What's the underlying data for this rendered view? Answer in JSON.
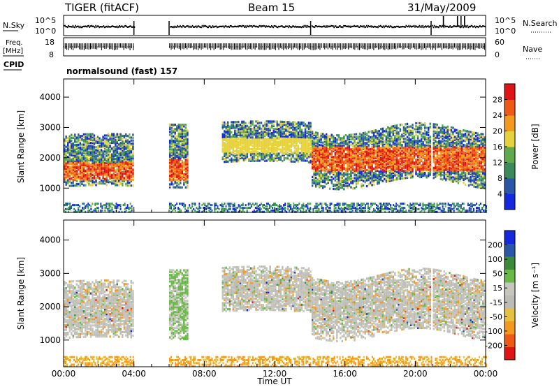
{
  "header": {
    "radar": "TIGER (fitACF)",
    "beam": "Beam 15",
    "date": "31/May/2009"
  },
  "noise_panel": {
    "left_label": "N.Sky",
    "left_ticks": [
      "10^5",
      "10^0"
    ],
    "right_label": "N.Search",
    "right_ticks": [
      "10^5",
      "10^0"
    ]
  },
  "freq_panel": {
    "left_label_1": "Freq.",
    "left_label_2": "[MHz]",
    "left_ticks": [
      "18",
      "8"
    ],
    "right_label": "Nave",
    "right_ticks": [
      "60",
      "0"
    ]
  },
  "cpid": {
    "label": "CPID",
    "text": "normalsound (fast) 157"
  },
  "x_axis": {
    "label": "Time UT",
    "ticks": [
      "00:00",
      "04:00",
      "08:00",
      "12:00",
      "16:00",
      "20:00",
      "00:00"
    ]
  },
  "colors": {
    "power": [
      "#1428e0",
      "#2a56a8",
      "#3a8a5a",
      "#5faa4a",
      "#e6d23c",
      "#f29a1e",
      "#ee5a14",
      "#e01414"
    ],
    "velocity": [
      "#e01414",
      "#ee5a14",
      "#f29a1e",
      "#e6c040",
      "#bcbcb4",
      "#c6c6be",
      "#6ab848",
      "#3a8a3a",
      "#2a56a8",
      "#1428e0"
    ]
  },
  "chart_data": [
    {
      "type": "heatmap",
      "title": "",
      "xlabel": "Time UT",
      "ylabel": "Slant Range [km]",
      "xlim": [
        0,
        24
      ],
      "ylim": [
        200,
        4600
      ],
      "yticks": [
        1000,
        2000,
        3000,
        4000
      ],
      "colorbar": {
        "label": "Power [dB]",
        "ticks": [
          4,
          8,
          12,
          16,
          20,
          24,
          28
        ],
        "range": [
          0,
          32
        ]
      },
      "data_gaps_hours": [
        [
          4.0,
          6.0
        ],
        [
          14.05,
          14.1
        ],
        [
          20.9,
          20.95
        ]
      ],
      "echo_bands": [
        {
          "t0": 0.0,
          "t1": 4.0,
          "r_lo": 1100,
          "r_hi": 2800,
          "peak_dB": 30,
          "core": [
            1300,
            1900
          ]
        },
        {
          "t0": 6.0,
          "t1": 7.0,
          "r_lo": 1100,
          "r_hi": 3200,
          "peak_dB": 26,
          "core": [
            1300,
            2000
          ]
        },
        {
          "t0": 9.0,
          "t1": 14.0,
          "r_lo": 1900,
          "r_hi": 3200,
          "peak_dB": 18,
          "core": [
            2200,
            2700
          ]
        },
        {
          "t0": 14.1,
          "t1": 24.0,
          "r_lo": 1200,
          "r_hi": 3000,
          "peak_dB": 26,
          "core": [
            1600,
            2400
          ]
        }
      ],
      "ground_scatter_range_km": [
        250,
        550
      ]
    },
    {
      "type": "heatmap",
      "title": "",
      "xlabel": "Time UT",
      "ylabel": "Slant Range [km]",
      "xlim": [
        0,
        24
      ],
      "ylim": [
        200,
        4600
      ],
      "yticks": [
        1000,
        2000,
        3000,
        4000
      ],
      "colorbar": {
        "label": "Velocity [m s^-1]",
        "ticks": [
          200,
          100,
          50,
          15,
          -15,
          -50,
          -100,
          -200
        ],
        "range": [
          -250,
          250
        ]
      },
      "echo_bands": [
        {
          "t0": 0.0,
          "t1": 4.0,
          "r_lo": 1100,
          "r_hi": 2800,
          "typical_vel": 0
        },
        {
          "t0": 6.0,
          "t1": 7.0,
          "r_lo": 1100,
          "r_hi": 3200,
          "typical_vel": 60
        },
        {
          "t0": 9.0,
          "t1": 14.0,
          "r_lo": 1900,
          "r_hi": 3200,
          "typical_vel": 0
        },
        {
          "t0": 14.1,
          "t1": 24.0,
          "r_lo": 1200,
          "r_hi": 3000,
          "typical_vel": 0
        }
      ],
      "ground_scatter_range_km": [
        250,
        550
      ]
    }
  ]
}
